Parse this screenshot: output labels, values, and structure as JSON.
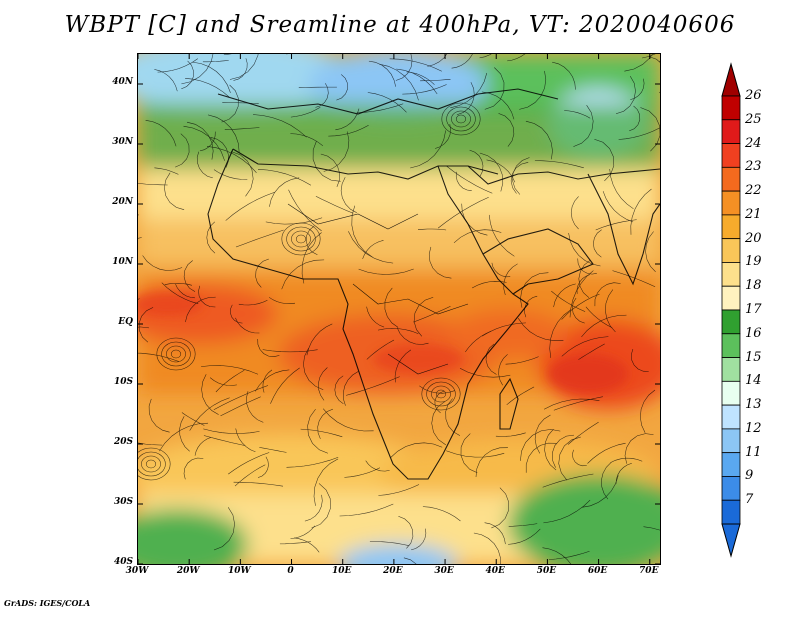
{
  "title": "WBPT [C] and Sreamline at 400hPa, VT: 2020040606",
  "map": {
    "lat_ticks": [
      "40N",
      "30N",
      "20N",
      "10N",
      "EQ",
      "10S",
      "20S",
      "30S",
      "40S"
    ],
    "lon_ticks": [
      "30W",
      "20W",
      "10W",
      "0",
      "10E",
      "20E",
      "30E",
      "40E",
      "50E",
      "60E",
      "70E"
    ],
    "lon_range": [
      -30,
      72
    ],
    "lat_range": [
      -40,
      45
    ]
  },
  "colorbar": {
    "levels": [
      "26",
      "25",
      "24",
      "23",
      "22",
      "21",
      "20",
      "19",
      "18",
      "17",
      "16",
      "15",
      "14",
      "13",
      "12",
      "11",
      "9",
      "7"
    ],
    "colors": [
      "#c00000",
      "#e01a1a",
      "#f04020",
      "#f46a1e",
      "#f59024",
      "#f7ab2c",
      "#f9c659",
      "#fde08c",
      "#fff2bf",
      "#30a030",
      "#5cc05c",
      "#a0e0a0",
      "#e8fff0",
      "#bfe3ff",
      "#8cc6f5",
      "#5aa8f0",
      "#3c8ce8",
      "#1a6ad8"
    ]
  },
  "footer": "GrADS: IGES/COLA"
}
